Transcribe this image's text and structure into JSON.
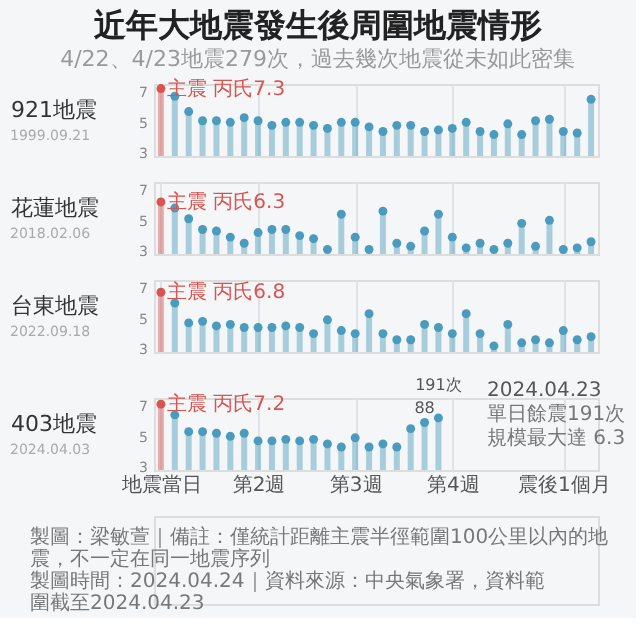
{
  "chart_data": [
    {
      "type": "other",
      "title": "近年大地震發生後周圍地震情形",
      "subtitle": "4/22、4/23地震279次，過去幾次地震從未如此密集"
    },
    {
      "type": "lollipop",
      "ylabel": "921地震",
      "annotations": [
        "1999.09.21",
        {
          "text": "主震 丙氏7.3",
          "x": "地震當日",
          "y": 7.3
        }
      ],
      "categories": [
        "地震當日",
        null,
        null,
        null,
        null,
        null,
        null,
        "第2週",
        null,
        null,
        null,
        null,
        null,
        null,
        "第3週",
        null,
        null,
        null,
        null,
        null,
        null,
        "第4週",
        null,
        null,
        null,
        null,
        null,
        null,
        null,
        "震後1個月",
        null,
        null
      ],
      "values": [
        7.3,
        6.8,
        5.8,
        5.2,
        5.2,
        5.1,
        5.4,
        5.2,
        4.9,
        5.1,
        5.1,
        4.9,
        4.7,
        5.1,
        5.1,
        4.8,
        4.5,
        4.9,
        4.9,
        4.5,
        4.6,
        4.7,
        5.1,
        4.5,
        4.3,
        5.0,
        4.3,
        5.2,
        5.3,
        4.5,
        4.4,
        6.6
      ],
      "colors": [
        "#d9534f",
        "#4a9bbd",
        "#4a9bbd",
        "#4a9bbd",
        "#4a9bbd",
        "#4a9bbd",
        "#4a9bbd",
        "#4a9bbd",
        "#4a9bbd",
        "#4a9bbd",
        "#4a9bbd",
        "#4a9bbd",
        "#4a9bbd",
        "#4a9bbd",
        "#4a9bbd",
        "#4a9bbd",
        "#4a9bbd",
        "#4a9bbd",
        "#4a9bbd",
        "#4a9bbd",
        "#4a9bbd",
        "#4a9bbd",
        "#4a9bbd",
        "#4a9bbd",
        "#4a9bbd",
        "#4a9bbd",
        "#4a9bbd",
        "#4a9bbd",
        "#4a9bbd",
        "#4a9bbd",
        "#4a9bbd",
        "#4a9bbd"
      ],
      "ylim": [
        2.9,
        7.6
      ],
      "yticks": [
        3,
        5,
        7
      ],
      "grid": "x",
      "marker": "circle",
      "tick_labels": "y"
    },
    {
      "type": "lollipop",
      "ylabel": "花蓮地震",
      "annotations": [
        "2018.02.06",
        {
          "text": "主震 丙氏6.3",
          "x": "地震當日",
          "y": 6.3
        }
      ],
      "categories": [
        "地震當日",
        null,
        null,
        null,
        null,
        null,
        null,
        "第2週",
        null,
        null,
        null,
        null,
        null,
        null,
        "第3週",
        null,
        null,
        null,
        null,
        null,
        null,
        "第4週",
        null,
        null,
        null,
        null,
        null,
        null,
        null,
        "震後1個月",
        null,
        null
      ],
      "values": [
        6.3,
        5.9,
        5.2,
        4.5,
        4.4,
        4.0,
        3.6,
        4.3,
        4.5,
        4.5,
        4.1,
        3.9,
        3.2,
        5.5,
        4.0,
        3.2,
        5.7,
        3.6,
        3.4,
        4.4,
        5.5,
        4.0,
        3.3,
        3.6,
        3.2,
        3.6,
        4.9,
        3.4,
        5.1,
        3.2,
        3.3,
        3.7
      ],
      "colors": [
        "#d9534f",
        "#4a9bbd",
        "#4a9bbd",
        "#4a9bbd",
        "#4a9bbd",
        "#4a9bbd",
        "#4a9bbd",
        "#4a9bbd",
        "#4a9bbd",
        "#4a9bbd",
        "#4a9bbd",
        "#4a9bbd",
        "#4a9bbd",
        "#4a9bbd",
        "#4a9bbd",
        "#4a9bbd",
        "#4a9bbd",
        "#4a9bbd",
        "#4a9bbd",
        "#4a9bbd",
        "#4a9bbd",
        "#4a9bbd",
        "#4a9bbd",
        "#4a9bbd",
        "#4a9bbd",
        "#4a9bbd",
        "#4a9bbd",
        "#4a9bbd",
        "#4a9bbd",
        "#4a9bbd",
        "#4a9bbd",
        "#4a9bbd"
      ],
      "ylim": [
        2.9,
        7.6
      ],
      "yticks": [
        3,
        5,
        7
      ],
      "grid": "x",
      "marker": "circle",
      "tick_labels": "y"
    },
    {
      "type": "lollipop",
      "ylabel": "台東地震",
      "annotations": [
        "2022.09.18",
        {
          "text": "主震 丙氏6.8",
          "x": "地震當日",
          "y": 6.8
        }
      ],
      "categories": [
        "地震當日",
        null,
        null,
        null,
        null,
        null,
        null,
        "第2週",
        null,
        null,
        null,
        null,
        null,
        null,
        "第3週",
        null,
        null,
        null,
        null,
        null,
        null,
        "第4週",
        null,
        null,
        null,
        null,
        null,
        null,
        null,
        "震後1個月",
        null,
        null
      ],
      "values": [
        6.8,
        6.1,
        4.8,
        4.9,
        4.6,
        4.7,
        4.5,
        4.5,
        4.5,
        4.6,
        4.5,
        4.1,
        5.0,
        4.3,
        4.1,
        5.4,
        4.1,
        3.7,
        3.7,
        4.7,
        4.5,
        4.1,
        5.4,
        4.1,
        3.3,
        4.7,
        3.5,
        3.7,
        3.5,
        4.3,
        3.7,
        3.9
      ],
      "colors": [
        "#d9534f",
        "#4a9bbd",
        "#4a9bbd",
        "#4a9bbd",
        "#4a9bbd",
        "#4a9bbd",
        "#4a9bbd",
        "#4a9bbd",
        "#4a9bbd",
        "#4a9bbd",
        "#4a9bbd",
        "#4a9bbd",
        "#4a9bbd",
        "#4a9bbd",
        "#4a9bbd",
        "#4a9bbd",
        "#4a9bbd",
        "#4a9bbd",
        "#4a9bbd",
        "#4a9bbd",
        "#4a9bbd",
        "#4a9bbd",
        "#4a9bbd",
        "#4a9bbd",
        "#4a9bbd",
        "#4a9bbd",
        "#4a9bbd",
        "#4a9bbd",
        "#4a9bbd",
        "#4a9bbd",
        "#4a9bbd",
        "#4a9bbd"
      ],
      "ylim": [
        2.9,
        7.6
      ],
      "yticks": [
        3,
        5,
        7
      ],
      "grid": "x",
      "marker": "circle",
      "tick_labels": "y"
    },
    {
      "type": "lollipop",
      "ylabel": "403地震",
      "annotations": [
        "2024.04.03",
        "2024.04.23",
        "單日餘震191次",
        "規模最大達 6.3",
        {
          "text": "主震 丙氏7.2",
          "x": "地震當日",
          "y": 7.2
        },
        {
          "text": "88",
          "y": 6.0
        },
        {
          "text": "191次",
          "y": 6.3
        }
      ],
      "categories": [
        "地震當日",
        null,
        null,
        null,
        null,
        null,
        null,
        "第2週",
        null,
        null,
        null,
        null,
        null,
        null,
        "第3週",
        null,
        null,
        null,
        null,
        null,
        null,
        "第4週",
        null,
        null,
        null,
        null,
        null,
        null,
        null,
        "震後1個月",
        null,
        null
      ],
      "values": [
        7.2,
        6.5,
        5.4,
        5.4,
        5.3,
        5.1,
        5.3,
        4.8,
        4.8,
        4.9,
        4.8,
        4.9,
        4.6,
        4.4,
        5.0,
        4.4,
        4.6,
        4.4,
        5.6,
        6.0,
        6.3,
        null,
        null,
        null,
        null,
        null,
        null,
        null,
        null,
        null,
        null,
        null
      ],
      "colors": [
        "#d9534f",
        "#4a9bbd",
        "#4a9bbd",
        "#4a9bbd",
        "#4a9bbd",
        "#4a9bbd",
        "#4a9bbd",
        "#4a9bbd",
        "#4a9bbd",
        "#4a9bbd",
        "#4a9bbd",
        "#4a9bbd",
        "#4a9bbd",
        "#4a9bbd",
        "#4a9bbd",
        "#4a9bbd",
        "#4a9bbd",
        "#4a9bbd",
        "#4a9bbd",
        "#4a9bbd",
        "#4a9bbd",
        "#4a9bbd",
        "#4a9bbd",
        "#4a9bbd",
        "#4a9bbd",
        "#4a9bbd",
        "#4a9bbd",
        "#4a9bbd",
        "#4a9bbd",
        "#4a9bbd",
        "#4a9bbd",
        "#4a9bbd"
      ],
      "ylim": [
        2.9,
        7.6
      ],
      "yticks": [
        3,
        5,
        7
      ],
      "grid": "x",
      "marker": "circle"
    },
    {
      "type": "other",
      "annotations": [
        "製圖：梁敏萱｜備註：僅統計距離主震半徑範圍100公里以內的地震，不一定在同一地震序列",
        "製圖時間：2024.04.24｜資料來源：中央氣象署，資料範圍截至2024.04.23"
      ]
    }
  ]
}
